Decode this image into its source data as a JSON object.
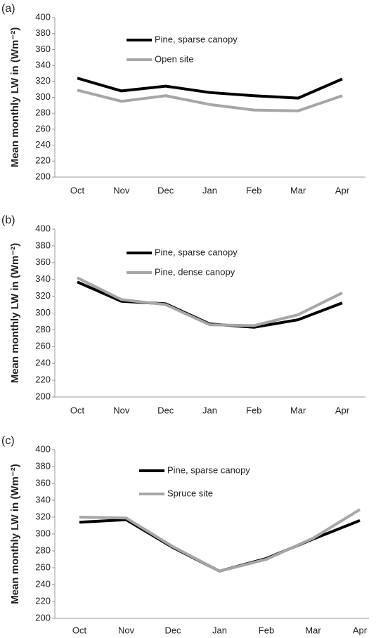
{
  "chart_data": [
    {
      "type": "line",
      "panel_label": "(a)",
      "y_label": "Mean monthly LW in (Wm⁻²)",
      "categories": [
        "Oct",
        "Nov",
        "Dec",
        "Jan",
        "Feb",
        "Mar",
        "Apr"
      ],
      "series": [
        {
          "name": "Pine, sparse canopy",
          "color": "#000000",
          "values": [
            324,
            308,
            314,
            306,
            302,
            299,
            323
          ]
        },
        {
          "name": "Open site",
          "color": "#a6a6a6",
          "values": [
            309,
            295,
            302,
            291,
            284,
            283,
            302
          ]
        }
      ],
      "ylim": [
        200,
        400
      ],
      "yticks": [
        200,
        220,
        240,
        260,
        280,
        300,
        320,
        340,
        360,
        380,
        400
      ]
    },
    {
      "type": "line",
      "panel_label": "(b)",
      "y_label": "Mean monthly LW in (Wm⁻²)",
      "categories": [
        "Oct",
        "Nov",
        "Dec",
        "Jan",
        "Feb",
        "Mar",
        "Apr"
      ],
      "series": [
        {
          "name": "Pine, sparse canopy",
          "color": "#000000",
          "values": [
            337,
            314,
            311,
            287,
            283,
            292,
            312
          ]
        },
        {
          "name": "Pine, dense canopy",
          "color": "#a6a6a6",
          "values": [
            342,
            316,
            310,
            286,
            285,
            298,
            324
          ]
        }
      ],
      "ylim": [
        200,
        400
      ],
      "yticks": [
        200,
        220,
        240,
        260,
        280,
        300,
        320,
        340,
        360,
        380,
        400
      ]
    },
    {
      "type": "line",
      "panel_label": "(c)",
      "y_label": "Mean monthly LW in (Wm⁻²)",
      "categories": [
        "Oct",
        "Nov",
        "Dec",
        "Jan",
        "Feb",
        "Mar",
        "Apr"
      ],
      "series": [
        {
          "name": "Pine, sparse canopy",
          "color": "#000000",
          "values": [
            314,
            317,
            284,
            256,
            271,
            294,
            316
          ]
        },
        {
          "name": "Spruce site",
          "color": "#a6a6a6",
          "values": [
            320,
            319,
            285,
            256,
            270,
            295,
            329
          ]
        }
      ],
      "ylim": [
        200,
        400
      ],
      "yticks": [
        200,
        220,
        240,
        260,
        280,
        300,
        320,
        340,
        360,
        380,
        400
      ]
    }
  ]
}
